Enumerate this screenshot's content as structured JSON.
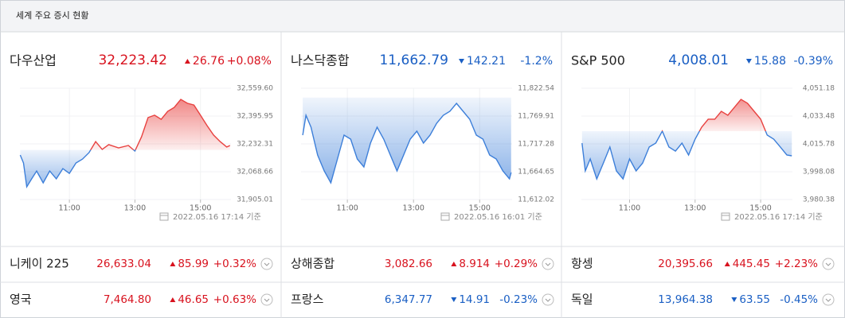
{
  "header": {
    "title": "세계 주요 증시 현황"
  },
  "chart_data": [
    {
      "type": "line",
      "title": "다우산업",
      "price": "32,223.42",
      "change": "26.76",
      "change_pct": "+0.08%",
      "trend": "up",
      "timestamp": "2022.05.16 17:14 기준",
      "x": [
        9.5,
        9.6,
        9.7,
        9.85,
        10.0,
        10.2,
        10.4,
        10.6,
        10.8,
        11.0,
        11.2,
        11.4,
        11.6,
        11.8,
        12.0,
        12.2,
        12.5,
        12.8,
        13.0,
        13.2,
        13.4,
        13.6,
        13.8,
        14.0,
        14.2,
        14.4,
        14.6,
        14.8,
        15.0,
        15.2,
        15.4,
        15.6,
        15.8,
        15.9
      ],
      "values": [
        32167,
        32120,
        31980,
        32027,
        32073,
        32003,
        32073,
        32027,
        32087,
        32059,
        32120,
        32143,
        32181,
        32246,
        32200,
        32228,
        32209,
        32223,
        32190,
        32274,
        32387,
        32401,
        32377,
        32424,
        32447,
        32494,
        32471,
        32461,
        32401,
        32340,
        32284,
        32246,
        32214,
        32223
      ],
      "reference_line": 32196.66,
      "up_color": "#e8413f",
      "down_color": "#3d7fd9",
      "grid": true,
      "xlim": [
        9.49,
        15.93
      ],
      "xticks": [
        {
          "value": 11,
          "label": "11:00"
        },
        {
          "value": 13,
          "label": "13:00"
        },
        {
          "value": 15,
          "label": "15:00"
        }
      ],
      "ylim": [
        31905.01,
        32559.6
      ],
      "yticks": [
        {
          "value": 31905.01,
          "label": "31,905.01"
        },
        {
          "value": 32068.66,
          "label": "32,068.66"
        },
        {
          "value": 32232.31,
          "label": "32,232.31"
        },
        {
          "value": 32395.95,
          "label": "32,395.95"
        },
        {
          "value": 32559.6,
          "label": "32,559.60"
        }
      ]
    },
    {
      "type": "line",
      "title": "나스닥종합",
      "price": "11,662.79",
      "change": "142.21",
      "change_pct": "-1.2%",
      "trend": "down",
      "timestamp": "2022.05.16 16:01 기준",
      "x": [
        9.65,
        9.75,
        9.9,
        10.1,
        10.3,
        10.5,
        10.7,
        10.9,
        11.1,
        11.3,
        11.5,
        11.7,
        11.9,
        12.1,
        12.3,
        12.5,
        12.7,
        12.9,
        13.1,
        13.3,
        13.5,
        13.7,
        13.9,
        14.1,
        14.3,
        14.5,
        14.7,
        14.9,
        15.1,
        15.3,
        15.5,
        15.7,
        15.9,
        15.95
      ],
      "values": [
        11733.8,
        11771.4,
        11748.9,
        11696.2,
        11666.2,
        11643.6,
        11688.7,
        11733.8,
        11726.3,
        11688.7,
        11673.7,
        11718.8,
        11748.9,
        11726.3,
        11696.2,
        11666.2,
        11696.2,
        11726.3,
        11741.3,
        11718.8,
        11733.8,
        11756.4,
        11771.4,
        11778.9,
        11794.0,
        11778.9,
        11763.9,
        11733.8,
        11726.3,
        11696.2,
        11688.7,
        11666.2,
        11651.1,
        11663.2
      ],
      "reference_line": 11805.0,
      "up_color": "#e8413f",
      "down_color": "#3d7fd9",
      "grid": true,
      "xlim": [
        9.6,
        15.98
      ],
      "xticks": [
        {
          "value": 11,
          "label": "11:00"
        },
        {
          "value": 13,
          "label": "13:00"
        },
        {
          "value": 15,
          "label": "15:00"
        }
      ],
      "ylim": [
        11612.02,
        11822.54
      ],
      "yticks": [
        {
          "value": 11612.02,
          "label": "11,612.02"
        },
        {
          "value": 11664.65,
          "label": "11,664.65"
        },
        {
          "value": 11717.28,
          "label": "11,717.28"
        },
        {
          "value": 11769.91,
          "label": "11,769.91"
        },
        {
          "value": 11822.54,
          "label": "11,822.54"
        }
      ]
    },
    {
      "type": "line",
      "title": "S&P 500",
      "price": "4,008.01",
      "change": "15.88",
      "change_pct": "-0.39%",
      "trend": "down",
      "timestamp": "2022.05.16 17:14 기준",
      "x": [
        9.55,
        9.65,
        9.8,
        10.0,
        10.2,
        10.4,
        10.6,
        10.8,
        11.0,
        11.2,
        11.4,
        11.6,
        11.8,
        12.0,
        12.2,
        12.4,
        12.6,
        12.8,
        13.0,
        13.2,
        13.4,
        13.6,
        13.8,
        14.0,
        14.2,
        14.4,
        14.6,
        14.8,
        15.0,
        15.2,
        15.4,
        15.6,
        15.8,
        15.95
      ],
      "values": [
        4016.3,
        3998.6,
        4006.2,
        3993.5,
        4003.6,
        4013.8,
        3998.6,
        3993.5,
        4006.2,
        3998.6,
        4003.6,
        4013.8,
        4016.3,
        4023.9,
        4013.8,
        4011.2,
        4016.3,
        4008.7,
        4018.8,
        4026.4,
        4031.5,
        4031.5,
        4036.5,
        4034.0,
        4039.1,
        4044.1,
        4041.6,
        4036.5,
        4031.5,
        4021.4,
        4018.8,
        4013.8,
        4008.7,
        4008.2
      ],
      "reference_line": 4023.89,
      "up_color": "#e8413f",
      "down_color": "#3d7fd9",
      "grid": true,
      "xlim": [
        9.53,
        15.97
      ],
      "xticks": [
        {
          "value": 11,
          "label": "11:00"
        },
        {
          "value": 13,
          "label": "13:00"
        },
        {
          "value": 15,
          "label": "15:00"
        }
      ],
      "ylim": [
        3980.38,
        4051.18
      ],
      "yticks": [
        {
          "value": 3980.38,
          "label": "3,980.38"
        },
        {
          "value": 3998.08,
          "label": "3,998.08"
        },
        {
          "value": 4015.78,
          "label": "4,015.78"
        },
        {
          "value": 4033.48,
          "label": "4,033.48"
        },
        {
          "value": 4051.18,
          "label": "4,051.18"
        }
      ]
    }
  ],
  "indices": [
    {
      "name": "니케이 225",
      "price": "26,633.04",
      "change": "85.99",
      "change_pct": "+0.32%",
      "trend": "up"
    },
    {
      "name": "상해종합",
      "price": "3,082.66",
      "change": "8.914",
      "change_pct": "+0.29%",
      "trend": "up"
    },
    {
      "name": "항셍",
      "price": "20,395.66",
      "change": "445.45",
      "change_pct": "+2.23%",
      "trend": "up"
    },
    {
      "name": "영국",
      "price": "7,464.80",
      "change": "46.65",
      "change_pct": "+0.63%",
      "trend": "up"
    },
    {
      "name": "프랑스",
      "price": "6,347.77",
      "change": "14.91",
      "change_pct": "-0.23%",
      "trend": "down"
    },
    {
      "name": "독일",
      "price": "13,964.38",
      "change": "63.55",
      "change_pct": "-0.45%",
      "trend": "down"
    }
  ]
}
